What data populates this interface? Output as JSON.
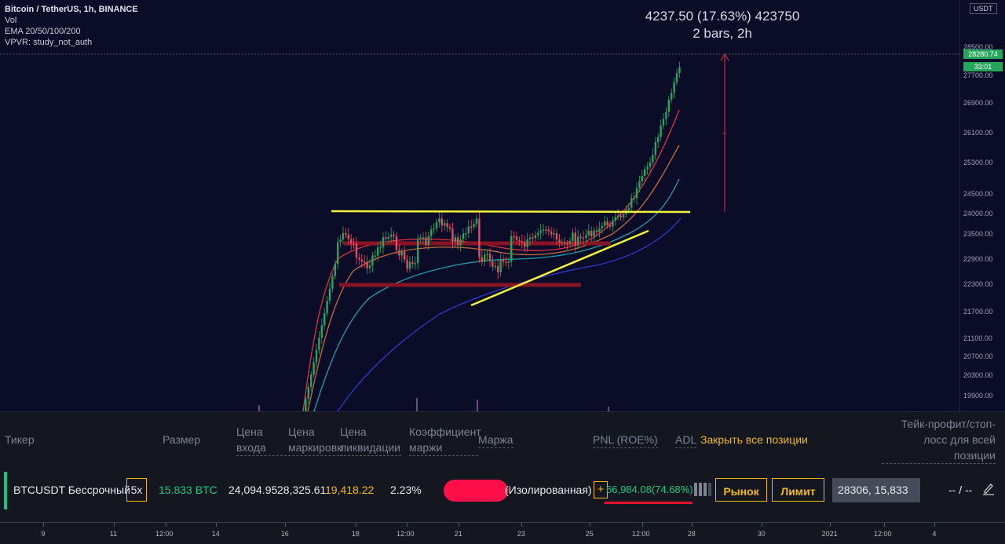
{
  "legend": {
    "symbol": "Bitcoin / TetherUS, 1h, BINANCE",
    "vol": "Vol",
    "ema": "EMA 20/50/100/200",
    "vpvr": "VPVR: study_not_auth"
  },
  "measure": {
    "line1": "4237.50 (17.63%) 423750",
    "line2": "2 bars, 2h"
  },
  "price_axis": {
    "currency": "USDT",
    "ticks": [
      "28500.00",
      "27700.00",
      "26900.00",
      "26100.00",
      "25300.00",
      "24500.00",
      "24000.00",
      "23500.00",
      "22900.00",
      "22300.00",
      "21700.00",
      "21100.00",
      "20700.00",
      "20300.00",
      "19900.00"
    ],
    "current_price": "28280.74",
    "countdown": "33:01"
  },
  "chart_data": {
    "type": "candlestick",
    "ylim": [
      19700,
      29000
    ],
    "x_ticks": [
      "9",
      "11",
      "12:00",
      "14",
      "16",
      "18",
      "12:00",
      "21",
      "23",
      "25",
      "12:00",
      "28",
      "30",
      "2021",
      "12:00",
      "4"
    ],
    "current_price": 28280.74,
    "colors": {
      "up": "#26a65b",
      "down": "#e84a5f",
      "ema20": "#e03040",
      "ema50": "#c86a3a",
      "ema100": "#1f9db0",
      "ema200": "#2c3ad0",
      "trend": "#f2f23a",
      "zone": "#8e1424"
    }
  },
  "positions": {
    "headers": {
      "ticker": "Тикер",
      "size": "Размер",
      "entry_1": "Цена",
      "entry_2": "входа",
      "mark_1": "Цена",
      "mark_2": "маркировки",
      "liq_1": "Цена",
      "liq_2": "ликвидации",
      "margin_ratio_1": "Коэффициент",
      "margin_ratio_2": "маржи",
      "margin": "Маржа",
      "pnl": "PNL (ROE%)",
      "adl": "ADL",
      "close_all": "Закрыть все позиции",
      "tpsl_1": "Тейк-профит/стоп-",
      "tpsl_2": "лосс для всей",
      "tpsl_3": "позиции"
    },
    "row": {
      "symbol": "BTCUSDT Бессрочный",
      "leverage": "5x",
      "size": "15.833 BTC",
      "entry_price": "24,094.95",
      "mark_price": "28,325.61",
      "liq_price": "19,418.22",
      "margin_ratio": "2.23%",
      "margin_mode": "(Изолированная)",
      "pnl": "66,984.08(74.68%)",
      "market_btn": "Рынок",
      "limit_btn": "Лимит",
      "limit_input": "28306, 15,833",
      "tpsl": "-- / --"
    }
  },
  "time_axis": {
    "ticks": [
      "9",
      "11",
      "12:00",
      "14",
      "16",
      "18",
      "12:00",
      "21",
      "23",
      "25",
      "12:00",
      "28",
      "30",
      "2021",
      "12:00",
      "4"
    ]
  }
}
